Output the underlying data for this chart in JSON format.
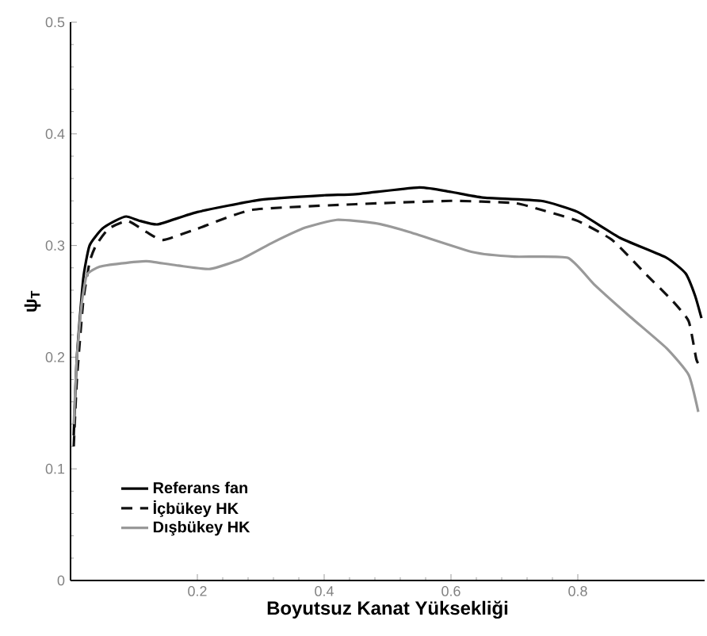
{
  "chart_data": {
    "type": "line",
    "xlabel": "Boyutsuz Kanat Yüksekliği",
    "ylabel": "ψ$_{T}$",
    "xlim": [
      0,
      1
    ],
    "ylim": [
      0,
      0.5
    ],
    "xticks": [
      0.2,
      0.4,
      0.6,
      0.8
    ],
    "yticks": [
      0,
      0.1,
      0.2,
      0.3,
      0.4,
      0.5
    ],
    "legend": "bottom left",
    "grid": false,
    "marker": "none",
    "series": [
      {
        "name": "Referans fan",
        "color": "#000000",
        "line_style": "solid",
        "x": [
          0.005,
          0.01,
          0.02,
          0.03,
          0.05,
          0.07,
          0.088,
          0.11,
          0.138,
          0.2,
          0.3,
          0.4,
          0.45,
          0.55,
          0.6,
          0.65,
          0.742,
          0.8,
          0.866,
          0.94,
          0.97,
          0.985,
          0.995
        ],
        "values": [
          0.13,
          0.2,
          0.27,
          0.3,
          0.315,
          0.322,
          0.326,
          0.322,
          0.319,
          0.33,
          0.341,
          0.345,
          0.346,
          0.352,
          0.348,
          0.343,
          0.34,
          0.33,
          0.307,
          0.289,
          0.275,
          0.255,
          0.235
        ]
      },
      {
        "name": "İçbükey HK",
        "color": "#111111",
        "line_style": "dashed",
        "x": [
          0.005,
          0.01,
          0.02,
          0.03,
          0.04,
          0.06,
          0.09,
          0.12,
          0.146,
          0.2,
          0.287,
          0.45,
          0.6,
          0.7,
          0.742,
          0.8,
          0.854,
          0.908,
          0.95,
          0.975,
          0.987,
          0.995
        ],
        "values": [
          0.12,
          0.18,
          0.25,
          0.285,
          0.3,
          0.315,
          0.322,
          0.312,
          0.305,
          0.315,
          0.332,
          0.337,
          0.34,
          0.338,
          0.332,
          0.322,
          0.305,
          0.274,
          0.25,
          0.232,
          0.198,
          0.19
        ]
      },
      {
        "name": "Dışbükey HK",
        "color": "#999999",
        "line_style": "solid",
        "x": [
          0.005,
          0.01,
          0.018,
          0.026,
          0.046,
          0.08,
          0.12,
          0.17,
          0.22,
          0.27,
          0.32,
          0.37,
          0.42,
          0.48,
          0.535,
          0.635,
          0.7,
          0.784,
          0.826,
          0.883,
          0.94,
          0.975,
          0.99
        ],
        "values": [
          0.14,
          0.2,
          0.25,
          0.274,
          0.281,
          0.284,
          0.286,
          0.282,
          0.279,
          0.288,
          0.303,
          0.316,
          0.323,
          0.32,
          0.312,
          0.294,
          0.29,
          0.289,
          0.265,
          0.236,
          0.208,
          0.184,
          0.151
        ]
      }
    ]
  }
}
